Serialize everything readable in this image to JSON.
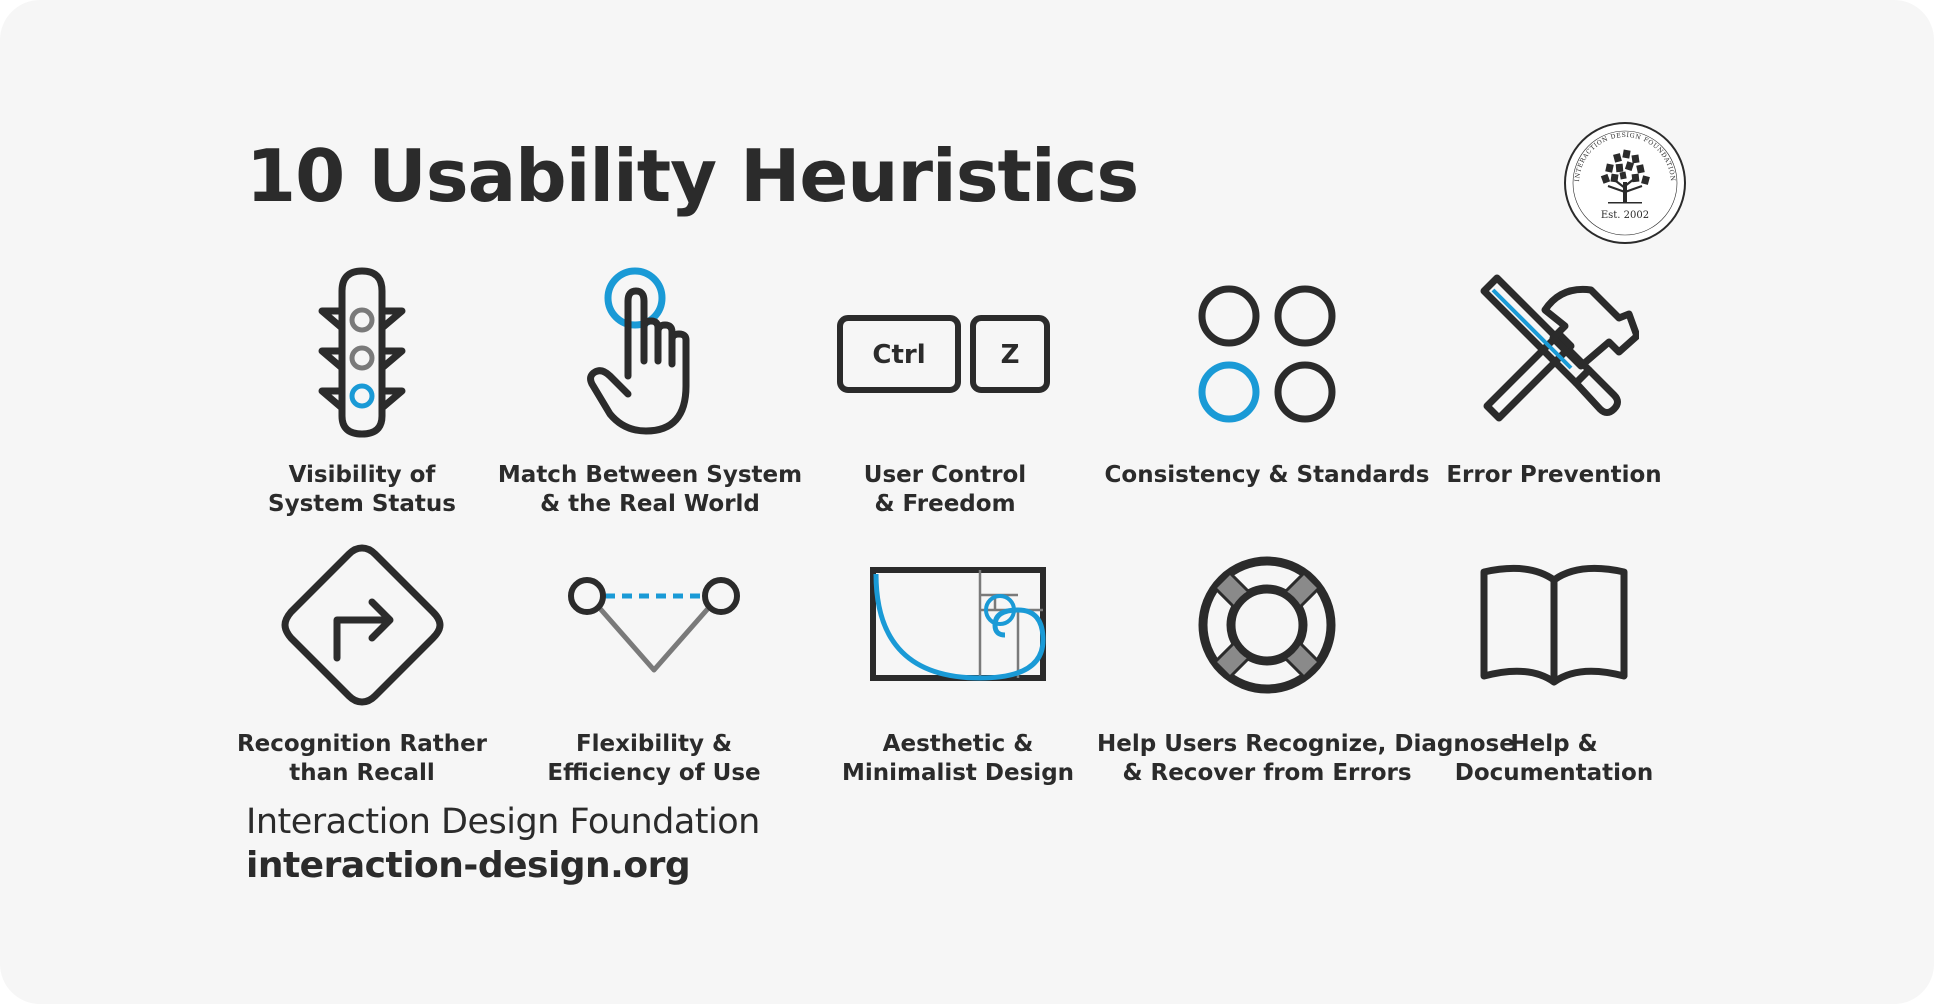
{
  "title": "10 Usability Heuristics",
  "logo": {
    "ring_text": "INTERACTION DESIGN FOUNDATION",
    "est": "Est. 2002"
  },
  "heuristics": [
    {
      "icon": "traffic-light-icon",
      "line1": "Visibility of",
      "line2": "System Status"
    },
    {
      "icon": "pointing-hand-icon",
      "line1": "Match Between System",
      "line2": "& the Real World"
    },
    {
      "icon": "ctrl-z-keys-icon",
      "line1": "User Control",
      "line2": "& Freedom",
      "keys": [
        "Ctrl",
        "Z"
      ]
    },
    {
      "icon": "four-circles-icon",
      "line1": "Consistency & Standards",
      "line2": ""
    },
    {
      "icon": "hammer-screwdriver-icon",
      "line1": "Error Prevention",
      "line2": ""
    },
    {
      "icon": "turn-right-sign-icon",
      "line1": "Recognition Rather",
      "line2": "than Recall"
    },
    {
      "icon": "shortcut-path-icon",
      "line1": "Flexibility &",
      "line2": "Efficiency of Use"
    },
    {
      "icon": "golden-spiral-icon",
      "line1": "Aesthetic &",
      "line2": "Minimalist Design"
    },
    {
      "icon": "lifebuoy-icon",
      "line1": "Help Users Recognize, Diagnose",
      "line2": "& Recover from Errors"
    },
    {
      "icon": "open-book-icon",
      "line1": "Help &",
      "line2": "Documentation"
    }
  ],
  "footer": {
    "org_name": "Interaction Design Foundation",
    "url": "interaction-design.org"
  },
  "colors": {
    "background": "#f6f6f6",
    "ink": "#2b2b2b",
    "accent": "#1a9ad6",
    "grey": "#7a7a7a"
  }
}
